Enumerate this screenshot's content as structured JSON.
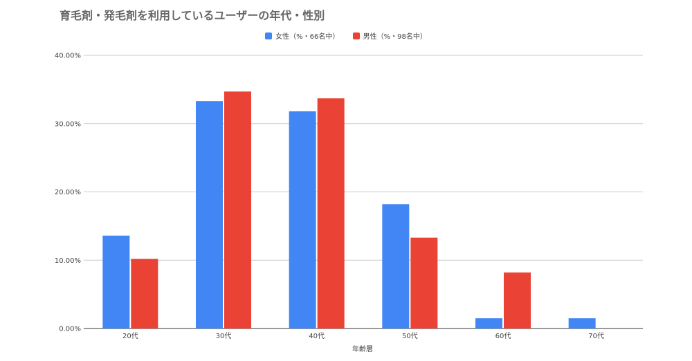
{
  "chart_data": {
    "type": "bar",
    "title": "育毛剤・発毛剤を利用しているユーザーの年代・性別",
    "xlabel": "年齢層",
    "ylabel": "",
    "categories": [
      "20代",
      "30代",
      "40代",
      "50代",
      "60代",
      "70代"
    ],
    "series": [
      {
        "name": "女性（%・66名中）",
        "color": "#4285f4",
        "values": [
          13.6,
          33.3,
          31.8,
          18.2,
          1.5,
          1.5
        ]
      },
      {
        "name": "男性（%・98名中）",
        "color": "#ea4335",
        "values": [
          10.2,
          34.7,
          33.7,
          13.3,
          8.2,
          0
        ]
      }
    ],
    "ylim": [
      0,
      40
    ],
    "yticks": [
      "0.00%",
      "10.00%",
      "20.00%",
      "30.00%",
      "40.00%"
    ],
    "grid": true,
    "legend_position": "top"
  }
}
